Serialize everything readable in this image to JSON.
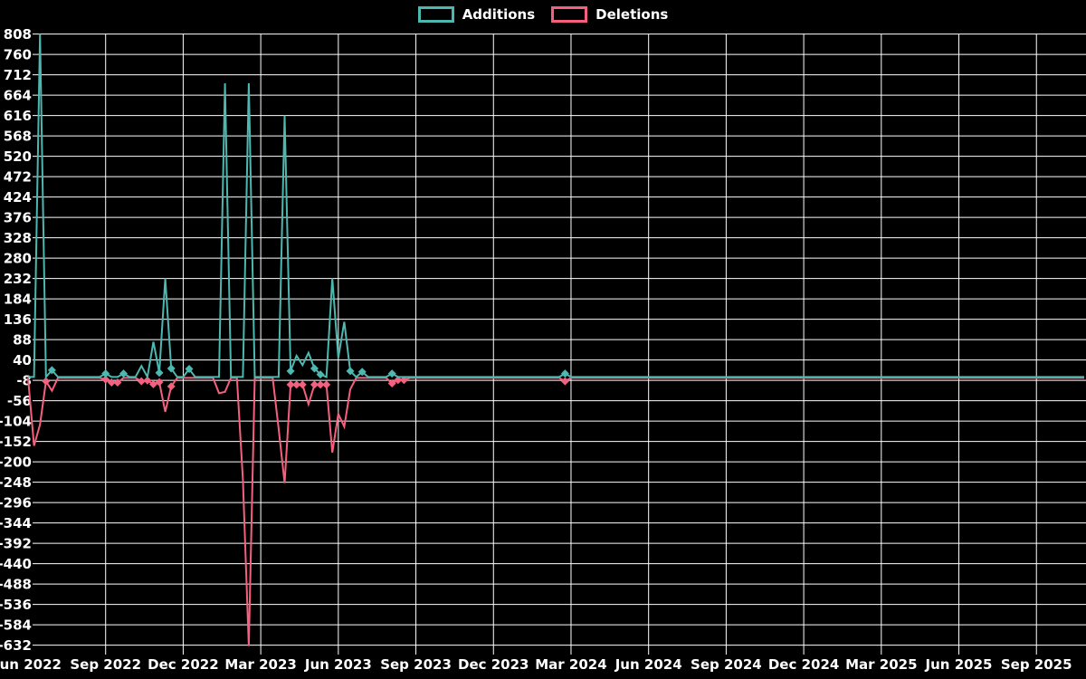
{
  "legend": {
    "items": [
      {
        "label": "Additions",
        "color": "#4cb8b0"
      },
      {
        "label": "Deletions",
        "color": "#f4607e"
      }
    ]
  },
  "chart_data": {
    "type": "line",
    "title": "",
    "xlabel": "",
    "ylabel": "",
    "grid": true,
    "legend_position": "top-center",
    "background_color": "#000000",
    "gridline_color": "#ffffff",
    "text_color": "#ffffff",
    "y_max": 808,
    "y_min": -632,
    "y_step": 48,
    "y_tick_labels": [
      808,
      760,
      712,
      664,
      616,
      568,
      520,
      472,
      424,
      376,
      328,
      280,
      232,
      184,
      136,
      88,
      40,
      -8,
      -56,
      -104,
      -152,
      -200,
      -248,
      -296,
      -344,
      -392,
      -440,
      -488,
      -536,
      -584,
      -632
    ],
    "x_tick_labels": [
      "Jun 2022",
      "Sep 2022",
      "Dec 2022",
      "Mar 2023",
      "Jun 2023",
      "Sep 2023",
      "Dec 2023",
      "Mar 2024",
      "Jun 2024",
      "Sep 2024",
      "Dec 2024",
      "Mar 2025",
      "Jun 2025",
      "Sep 2025"
    ],
    "weeks_per_quarter": 13,
    "total_weeks": 178,
    "default_value": 0,
    "series": [
      {
        "name": "Additions",
        "color": "#4cb8b0",
        "points": [
          [
            2,
            808
          ],
          [
            4,
            16
          ],
          [
            13,
            8
          ],
          [
            16,
            8
          ],
          [
            19,
            26
          ],
          [
            21,
            83
          ],
          [
            22,
            10
          ],
          [
            23,
            232
          ],
          [
            24,
            20
          ],
          [
            27,
            19
          ],
          [
            33,
            692
          ],
          [
            37,
            692
          ],
          [
            43,
            616
          ],
          [
            44,
            14
          ],
          [
            45,
            50
          ],
          [
            46,
            28
          ],
          [
            47,
            57
          ],
          [
            48,
            20
          ],
          [
            49,
            6
          ],
          [
            51,
            232
          ],
          [
            52,
            45
          ],
          [
            53,
            130
          ],
          [
            54,
            14
          ],
          [
            56,
            12
          ],
          [
            61,
            8
          ],
          [
            90,
            8
          ]
        ]
      },
      {
        "name": "Deletions",
        "color": "#f4607e",
        "points": [
          [
            1,
            -160
          ],
          [
            2,
            -110
          ],
          [
            3,
            -8
          ],
          [
            4,
            -30
          ],
          [
            13,
            -4
          ],
          [
            14,
            -11
          ],
          [
            15,
            -11
          ],
          [
            19,
            -8
          ],
          [
            20,
            -6
          ],
          [
            21,
            -15
          ],
          [
            22,
            -10
          ],
          [
            23,
            -80
          ],
          [
            24,
            -20
          ],
          [
            32,
            -36
          ],
          [
            33,
            -33
          ],
          [
            36,
            -240
          ],
          [
            37,
            -632
          ],
          [
            42,
            -120
          ],
          [
            43,
            -248
          ],
          [
            44,
            -16
          ],
          [
            45,
            -16
          ],
          [
            46,
            -16
          ],
          [
            47,
            -62
          ],
          [
            48,
            -16
          ],
          [
            49,
            -16
          ],
          [
            50,
            -16
          ],
          [
            51,
            -176
          ],
          [
            52,
            -85
          ],
          [
            53,
            -115
          ],
          [
            54,
            -27
          ],
          [
            61,
            -13
          ],
          [
            62,
            -5
          ],
          [
            63,
            -5
          ],
          [
            90,
            -8
          ]
        ]
      }
    ]
  }
}
